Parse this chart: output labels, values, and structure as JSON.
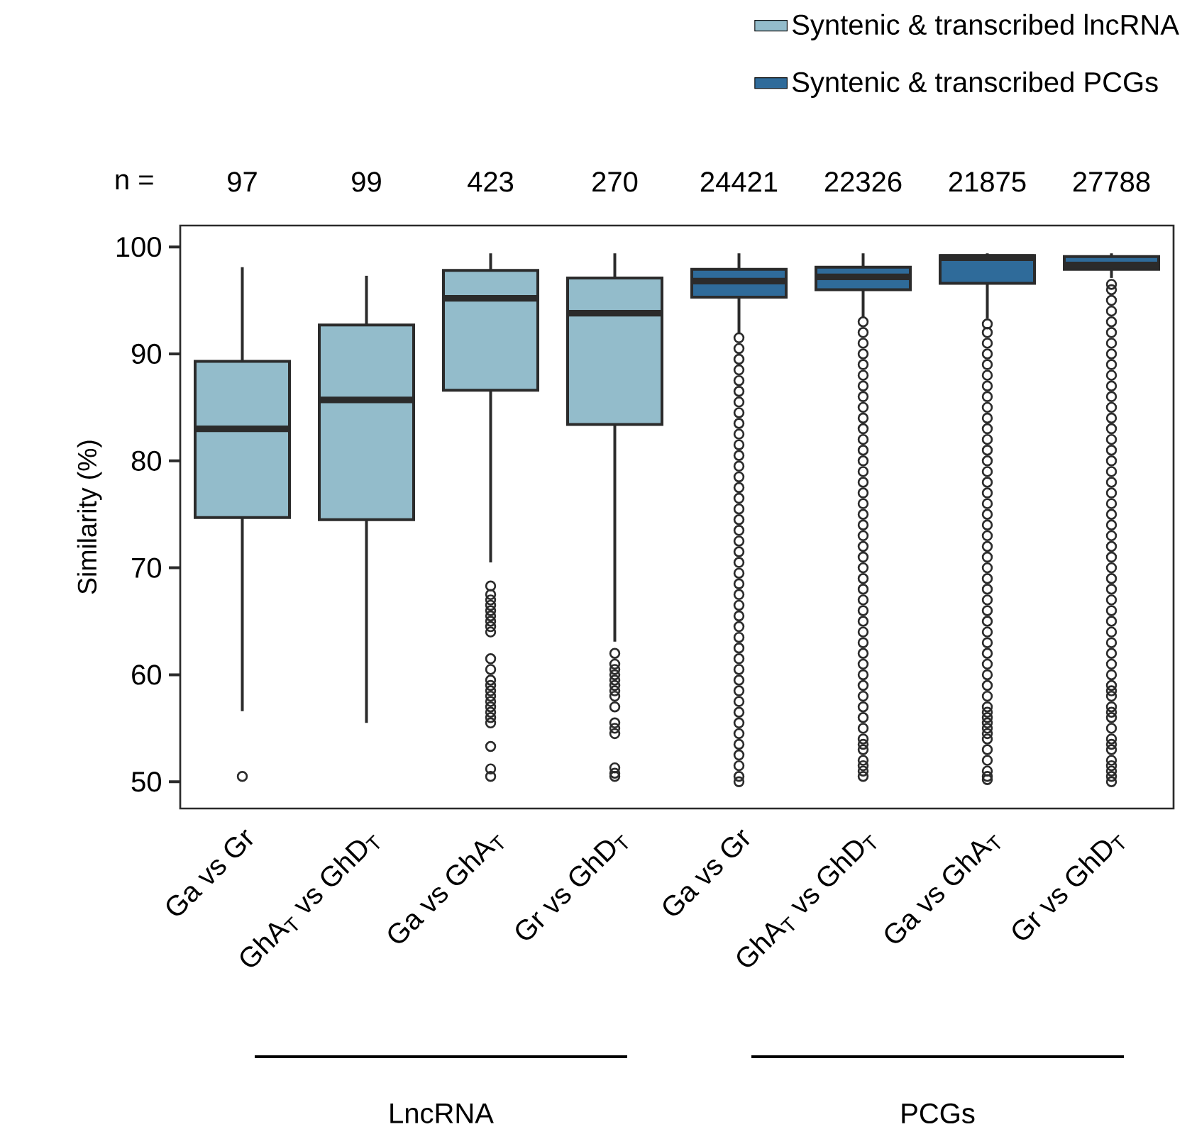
{
  "chart_data": {
    "type": "box",
    "categories": [
      "Ga vs Gr",
      "GhA$_{T}$ vs GhD$_{T}$",
      "Ga vs GhA$_{T}$",
      "Gr vs GhD$_{T}$",
      "Ga vs Gr",
      "GhA$_{T}$ vs GhD$_{T}$",
      "Ga vs GhA$_{T}$",
      "Gr vs GhD$_{T}$"
    ],
    "ylabel": "Similarity (%)",
    "ylim": [
      47.5,
      102
    ],
    "yticks": [
      50,
      60,
      70,
      80,
      90,
      100
    ],
    "legend": "top right",
    "marker": "circle",
    "series": [
      {
        "name": "Syntenic & transcribed lncRNA",
        "color": "#93bccb",
        "boxes": [
          {
            "low": 56.6,
            "q1": 74.7,
            "median": 83.0,
            "q3": 89.3,
            "high": 98.1,
            "outliers": [
              50.5
            ]
          },
          {
            "low": 55.5,
            "q1": 74.5,
            "median": 85.7,
            "q3": 92.7,
            "high": 97.3
          },
          {
            "low": 70.5,
            "q1": 86.6,
            "median": 95.2,
            "q3": 97.8,
            "high": 99.4,
            "outliers": [
              68.3,
              67.5,
              67,
              66.5,
              66,
              65.5,
              65,
              64.5,
              64,
              61.5,
              60.5,
              59.5,
              59,
              58.5,
              58,
              57.5,
              57,
              56.5,
              56,
              55.5,
              53.3,
              51.2,
              50.5
            ]
          },
          {
            "low": 63.1,
            "q1": 83.4,
            "median": 93.8,
            "q3": 97.1,
            "high": 99.4,
            "outliers": [
              62,
              61,
              60.5,
              60,
              59.5,
              59,
              58.5,
              58,
              57,
              55.5,
              55,
              54.5,
              51.3,
              50.8,
              50.5
            ]
          },
          null,
          null,
          null,
          null
        ]
      },
      {
        "name": "Syntenic & transcribed PCGs",
        "color": "#2f6b9a",
        "boxes": [
          null,
          null,
          null,
          null,
          {
            "low": 91.9,
            "q1": 95.3,
            "median": 96.8,
            "q3": 97.9,
            "high": 99.4,
            "outliers": [
              91.5,
              90.5,
              89.5,
              88.5,
              87.5,
              86.5,
              85.5,
              84.5,
              83.5,
              82.5,
              81.5,
              80.5,
              79.5,
              78.5,
              77.5,
              76.5,
              75.5,
              74.5,
              73.5,
              72.5,
              71.5,
              70.5,
              69.5,
              68.5,
              67.5,
              66.5,
              65.5,
              64.5,
              63.5,
              62.5,
              61.5,
              60.5,
              59.5,
              58.5,
              57.5,
              56.5,
              55.5,
              54.5,
              53.5,
              52.5,
              51.5,
              50.5,
              50
            ]
          },
          {
            "low": 93.4,
            "q1": 96.0,
            "median": 97.2,
            "q3": 98.1,
            "high": 99.4,
            "outliers": [
              93,
              92,
              91,
              90,
              89,
              88,
              87,
              86,
              85,
              84,
              83,
              82,
              81,
              80,
              79,
              78,
              77,
              76,
              75,
              74,
              73,
              72,
              71,
              70,
              69,
              68,
              67,
              66,
              65,
              64,
              63,
              62,
              61,
              60,
              59,
              58,
              57,
              56,
              55,
              54,
              53.5,
              53,
              52,
              51.5,
              51,
              50.5
            ]
          },
          {
            "low": 93.3,
            "q1": 96.6,
            "median": 99.0,
            "q3": 99.2,
            "high": 99.4,
            "outliers": [
              92.8,
              92,
              91,
              90,
              89,
              88,
              87,
              86,
              85,
              84,
              83,
              82,
              81,
              80,
              79,
              78,
              77,
              76,
              75,
              74,
              73,
              72,
              71,
              70,
              69,
              68,
              67,
              66,
              65,
              64,
              63,
              62,
              61,
              60,
              59,
              58,
              57,
              56.5,
              56,
              55.5,
              55,
              54.5,
              54,
              53,
              52,
              51,
              50.5,
              50.2
            ]
          },
          {
            "low": 97.1,
            "q1": 97.9,
            "median": 98.3,
            "q3": 99.1,
            "high": 99.4,
            "outliers": [
              96.5,
              96,
              95,
              94,
              93,
              92,
              91,
              90,
              89,
              88,
              87,
              86,
              85,
              84,
              83,
              82,
              81,
              80,
              79,
              78,
              77,
              76,
              75,
              74,
              73,
              72,
              71,
              70,
              69,
              68,
              67,
              66,
              65,
              64,
              63,
              62,
              61,
              60,
              59,
              58.5,
              58,
              57,
              56.5,
              56,
              55,
              54,
              53.5,
              53,
              52,
              51.5,
              51,
              50.5,
              50
            ]
          }
        ]
      }
    ],
    "annotations": [
      "n =",
      "97",
      "99",
      "423",
      "270",
      "24421",
      "22326",
      "21875",
      "27788",
      "LncRNA",
      "PCGs"
    ]
  }
}
